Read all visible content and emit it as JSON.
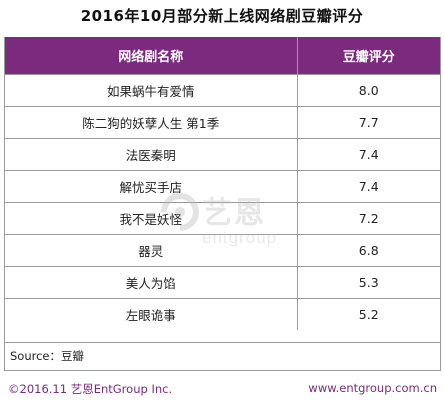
{
  "title": "2016年10月部分新上线网络剧豆瓣评分",
  "chart_data": {
    "type": "table",
    "columns": [
      "网络剧名称",
      "豆瓣评分"
    ],
    "rows": [
      {
        "name": "如果蜗牛有爱情",
        "score": "8.0"
      },
      {
        "name": "陈二狗的妖孽人生 第1季",
        "score": "7.7"
      },
      {
        "name": "法医秦明",
        "score": "7.4"
      },
      {
        "name": "解忧买手店",
        "score": "7.4"
      },
      {
        "name": "我不是妖怪",
        "score": "7.2"
      },
      {
        "name": "器灵",
        "score": "6.8"
      },
      {
        "name": "美人为馅",
        "score": "5.3"
      },
      {
        "name": "左眼诡事",
        "score": "5.2"
      }
    ]
  },
  "source": "Source：豆瓣",
  "footer": {
    "copyright": "©2016.11  艺恩EntGroup Inc.",
    "url": "www.entgroup.com.cn"
  },
  "watermark": {
    "cn": "艺恩",
    "en": "entgroup"
  },
  "colors": {
    "header": "#7b2a7e",
    "border": "#9a9a9a",
    "footer_text": "#7b2a7e"
  }
}
